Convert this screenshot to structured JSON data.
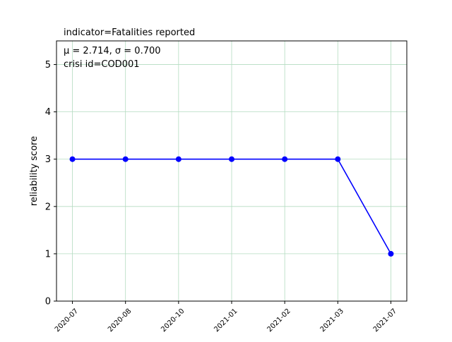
{
  "chart_data": {
    "type": "line",
    "title": "indicator=Fatalities reported",
    "ylabel": "reliability score",
    "xlabel": "",
    "annotation": {
      "stats": "μ = 2.714,  σ = 0.700",
      "crisis": "crisi id=COD001"
    },
    "categories": [
      "2020-07",
      "2020-08",
      "2020-10",
      "2021-01",
      "2021-02",
      "2021-03",
      "2021-07"
    ],
    "series": [
      {
        "values": [
          3,
          3,
          3,
          3,
          3,
          3,
          1
        ],
        "color": "#0000ff"
      }
    ],
    "ylim": [
      0,
      5.5
    ],
    "yticks": [
      0,
      1,
      2,
      3,
      4,
      5
    ],
    "grid": true,
    "grid_color": "#b3dcc0",
    "legend": "none"
  }
}
